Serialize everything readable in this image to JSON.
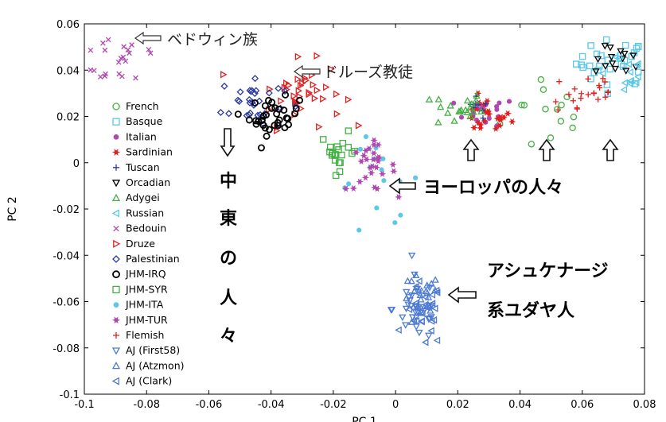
{
  "chart_data": {
    "type": "scatter",
    "xlabel": "PC 1",
    "ylabel": "PC 2",
    "xlim": [
      -0.1,
      0.08
    ],
    "ylim": [
      -0.1,
      0.06
    ],
    "xticks": [
      "-0.1",
      "-0.08",
      "-0.06",
      "-0.04",
      "-0.02",
      "0",
      "0.02",
      "0.04",
      "0.06",
      "0.08"
    ],
    "yticks": [
      "0.06",
      "0.04",
      "0.02",
      "0",
      "-0.02",
      "-0.04",
      "-0.06",
      "-0.08",
      "-0.1"
    ],
    "legend_position": "left",
    "series": [
      {
        "name": "French",
        "marker": "circle",
        "color": "#44b044",
        "region": {
          "cx": 0.05,
          "cy": 0.022,
          "sx": 0.008,
          "sy": 0.01,
          "n": 14
        }
      },
      {
        "name": "Basque",
        "marker": "square",
        "color": "#5ac8e6",
        "region": {
          "cx": 0.07,
          "cy": 0.043,
          "sx": 0.006,
          "sy": 0.005,
          "n": 30
        }
      },
      {
        "name": "Italian",
        "marker": "dot",
        "color": "#b048b0",
        "region": {
          "cx": 0.029,
          "cy": 0.022,
          "sx": 0.005,
          "sy": 0.003,
          "n": 18
        }
      },
      {
        "name": "Sardinian",
        "marker": "hexstar",
        "color": "#e02020",
        "region": {
          "cx": 0.029,
          "cy": 0.02,
          "sx": 0.004,
          "sy": 0.004,
          "n": 24
        }
      },
      {
        "name": "Tuscan",
        "marker": "plus",
        "color": "#2a3aa0",
        "region": {
          "cx": 0.026,
          "cy": 0.022,
          "sx": 0.002,
          "sy": 0.004,
          "n": 8
        }
      },
      {
        "name": "Orcadian",
        "marker": "tri-down",
        "color": "#000000",
        "region": {
          "cx": 0.072,
          "cy": 0.044,
          "sx": 0.004,
          "sy": 0.003,
          "n": 14
        }
      },
      {
        "name": "Adygei",
        "marker": "tri-up",
        "color": "#44b044",
        "region": {
          "cx": 0.02,
          "cy": 0.023,
          "sx": 0.004,
          "sy": 0.004,
          "n": 20
        }
      },
      {
        "name": "Russian",
        "marker": "tri-left",
        "color": "#5ac8e6",
        "region": {
          "cx": 0.073,
          "cy": 0.04,
          "sx": 0.006,
          "sy": 0.005,
          "n": 14
        }
      },
      {
        "name": "Bedouin",
        "marker": "cross",
        "color": "#b048b0",
        "region": {
          "cx": -0.087,
          "cy": 0.046,
          "sx": 0.007,
          "sy": 0.007,
          "n": 22
        }
      },
      {
        "name": "Druze",
        "marker": "tri-right",
        "color": "#e02020",
        "region": {
          "cx": -0.031,
          "cy": 0.03,
          "sx": 0.007,
          "sy": 0.007,
          "n": 40
        }
      },
      {
        "name": "Palestinian",
        "marker": "diamond",
        "color": "#2a3aa0",
        "region": {
          "cx": -0.046,
          "cy": 0.026,
          "sx": 0.005,
          "sy": 0.006,
          "n": 30
        }
      },
      {
        "name": "JHM-IRQ",
        "marker": "ring",
        "color": "#000000",
        "region": {
          "cx": -0.039,
          "cy": 0.02,
          "sx": 0.004,
          "sy": 0.004,
          "n": 34
        }
      },
      {
        "name": "JHM-SYR",
        "marker": "square",
        "color": "#44b044",
        "region": {
          "cx": -0.018,
          "cy": 0.005,
          "sx": 0.003,
          "sy": 0.004,
          "n": 20
        }
      },
      {
        "name": "JHM-ITA",
        "marker": "dot",
        "color": "#5ac8e6",
        "region": {
          "cx": -0.005,
          "cy": -0.008,
          "sx": 0.007,
          "sy": 0.01,
          "n": 16
        }
      },
      {
        "name": "JHM-TUR",
        "marker": "hexstar",
        "color": "#b048b0",
        "region": {
          "cx": -0.008,
          "cy": -0.002,
          "sx": 0.004,
          "sy": 0.005,
          "n": 28
        }
      },
      {
        "name": "Flemish",
        "marker": "plus",
        "color": "#e02020",
        "region": {
          "cx": 0.061,
          "cy": 0.03,
          "sx": 0.006,
          "sy": 0.006,
          "n": 22
        }
      },
      {
        "name": "AJ (First58)",
        "marker": "tri-down",
        "color": "#4d7bd4",
        "region": {
          "cx": 0.007,
          "cy": -0.063,
          "sx": 0.004,
          "sy": 0.007,
          "n": 30
        }
      },
      {
        "name": "AJ (Atzmon)",
        "marker": "tri-up",
        "color": "#4d7bd4",
        "region": {
          "cx": 0.008,
          "cy": -0.06,
          "sx": 0.003,
          "sy": 0.006,
          "n": 25
        }
      },
      {
        "name": "AJ (Clark)",
        "marker": "tri-left",
        "color": "#4d7bd4",
        "region": {
          "cx": 0.009,
          "cy": -0.066,
          "sx": 0.003,
          "sy": 0.007,
          "n": 25
        }
      }
    ]
  },
  "annotations": {
    "bedouin": "ベドウィン族",
    "druze": "ドルーズ教徒",
    "europe": "ヨーロッパの人々",
    "ashkenazi_line1": "アシュケナージ",
    "ashkenazi_line2": "系ユダヤ人",
    "middle_east": [
      "中",
      "東",
      "の",
      "人",
      "々"
    ]
  }
}
